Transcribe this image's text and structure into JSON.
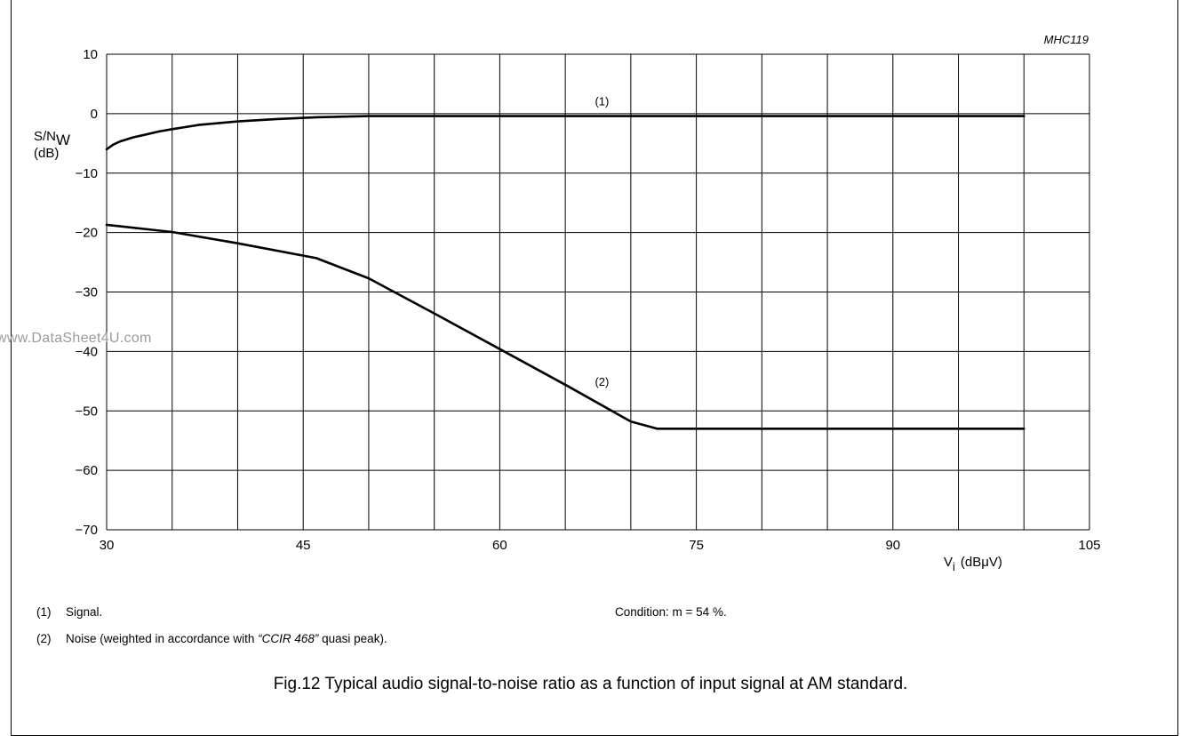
{
  "chart_data": {
    "type": "line",
    "code": "MHC119",
    "ylabel_main": "S/N",
    "ylabel_sub": "W",
    "ylabel_unit": "(dB)",
    "xlabel_main": "V",
    "xlabel_sub": "i",
    "xlabel_unit": "(dBμV)",
    "xlim": [
      30,
      105
    ],
    "ylim": [
      -70,
      10
    ],
    "x_ticks": [
      "30",
      "45",
      "60",
      "75",
      "90",
      "105"
    ],
    "y_ticks": [
      "10",
      "0",
      "−10",
      "−20",
      "−30",
      "−40",
      "−50",
      "−60",
      "−70"
    ],
    "grid": true,
    "series": [
      {
        "marker": "(1)",
        "x": [
          30,
          30.5,
          31,
          32,
          33,
          34,
          35,
          37,
          40,
          43,
          46,
          50,
          55,
          60,
          70,
          80,
          90,
          100
        ],
        "y": [
          -6.0,
          -5.2,
          -4.7,
          -4.0,
          -3.5,
          -3.0,
          -2.6,
          -1.9,
          -1.3,
          -0.9,
          -0.6,
          -0.4,
          -0.4,
          -0.4,
          -0.4,
          -0.4,
          -0.4,
          -0.4
        ]
      },
      {
        "marker": "(2)",
        "x": [
          30,
          35,
          40,
          46,
          50,
          55,
          60,
          65,
          70,
          72,
          80,
          90,
          100
        ],
        "y": [
          -18.7,
          -19.9,
          -21.8,
          -24.3,
          -27.7,
          -33.6,
          -39.6,
          -45.6,
          -51.8,
          -53.0,
          -53.0,
          -53.0,
          -53.0
        ]
      }
    ],
    "series_markers": [
      {
        "text": "(1)",
        "x": 67.8,
        "y": 2.0
      },
      {
        "text": "(2)",
        "x": 67.8,
        "y": -45.2
      }
    ]
  },
  "notes": {
    "n1_num": "(1)",
    "n1_text": "Signal.",
    "n2_num": "(2)",
    "n2_pre": "Noise (weighted in accordance with ",
    "n2_italic": "“CCIR 468”",
    "n2_post": " quasi peak).",
    "condition": "Condition: m = 54 %."
  },
  "caption": "Fig.12  Typical audio signal-to-noise ratio as a function of input signal at AM standard.",
  "watermark": "www.DataSheet4U.com"
}
